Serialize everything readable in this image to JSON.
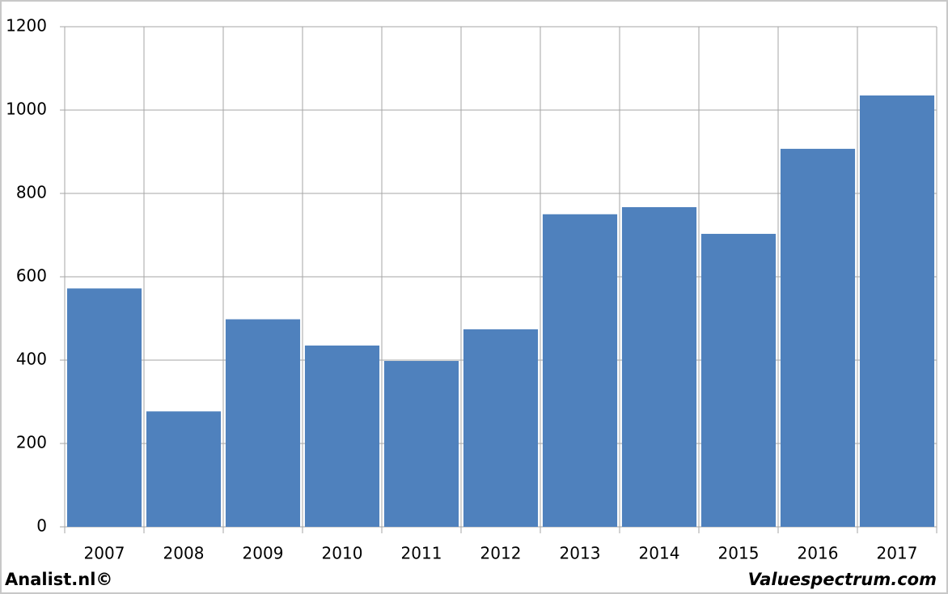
{
  "chart_data": {
    "type": "bar",
    "categories": [
      "2007",
      "2008",
      "2009",
      "2010",
      "2011",
      "2012",
      "2013",
      "2014",
      "2015",
      "2016",
      "2017"
    ],
    "values": [
      572,
      277,
      498,
      435,
      398,
      474,
      750,
      767,
      703,
      907,
      1035
    ],
    "color": "#4f81bd",
    "ylim": [
      0,
      1200
    ],
    "yticks": [
      0,
      200,
      400,
      600,
      800,
      1000,
      1200
    ],
    "grid": true,
    "annotations": [
      "Analist.nl©",
      "Valuespectrum.com"
    ]
  }
}
